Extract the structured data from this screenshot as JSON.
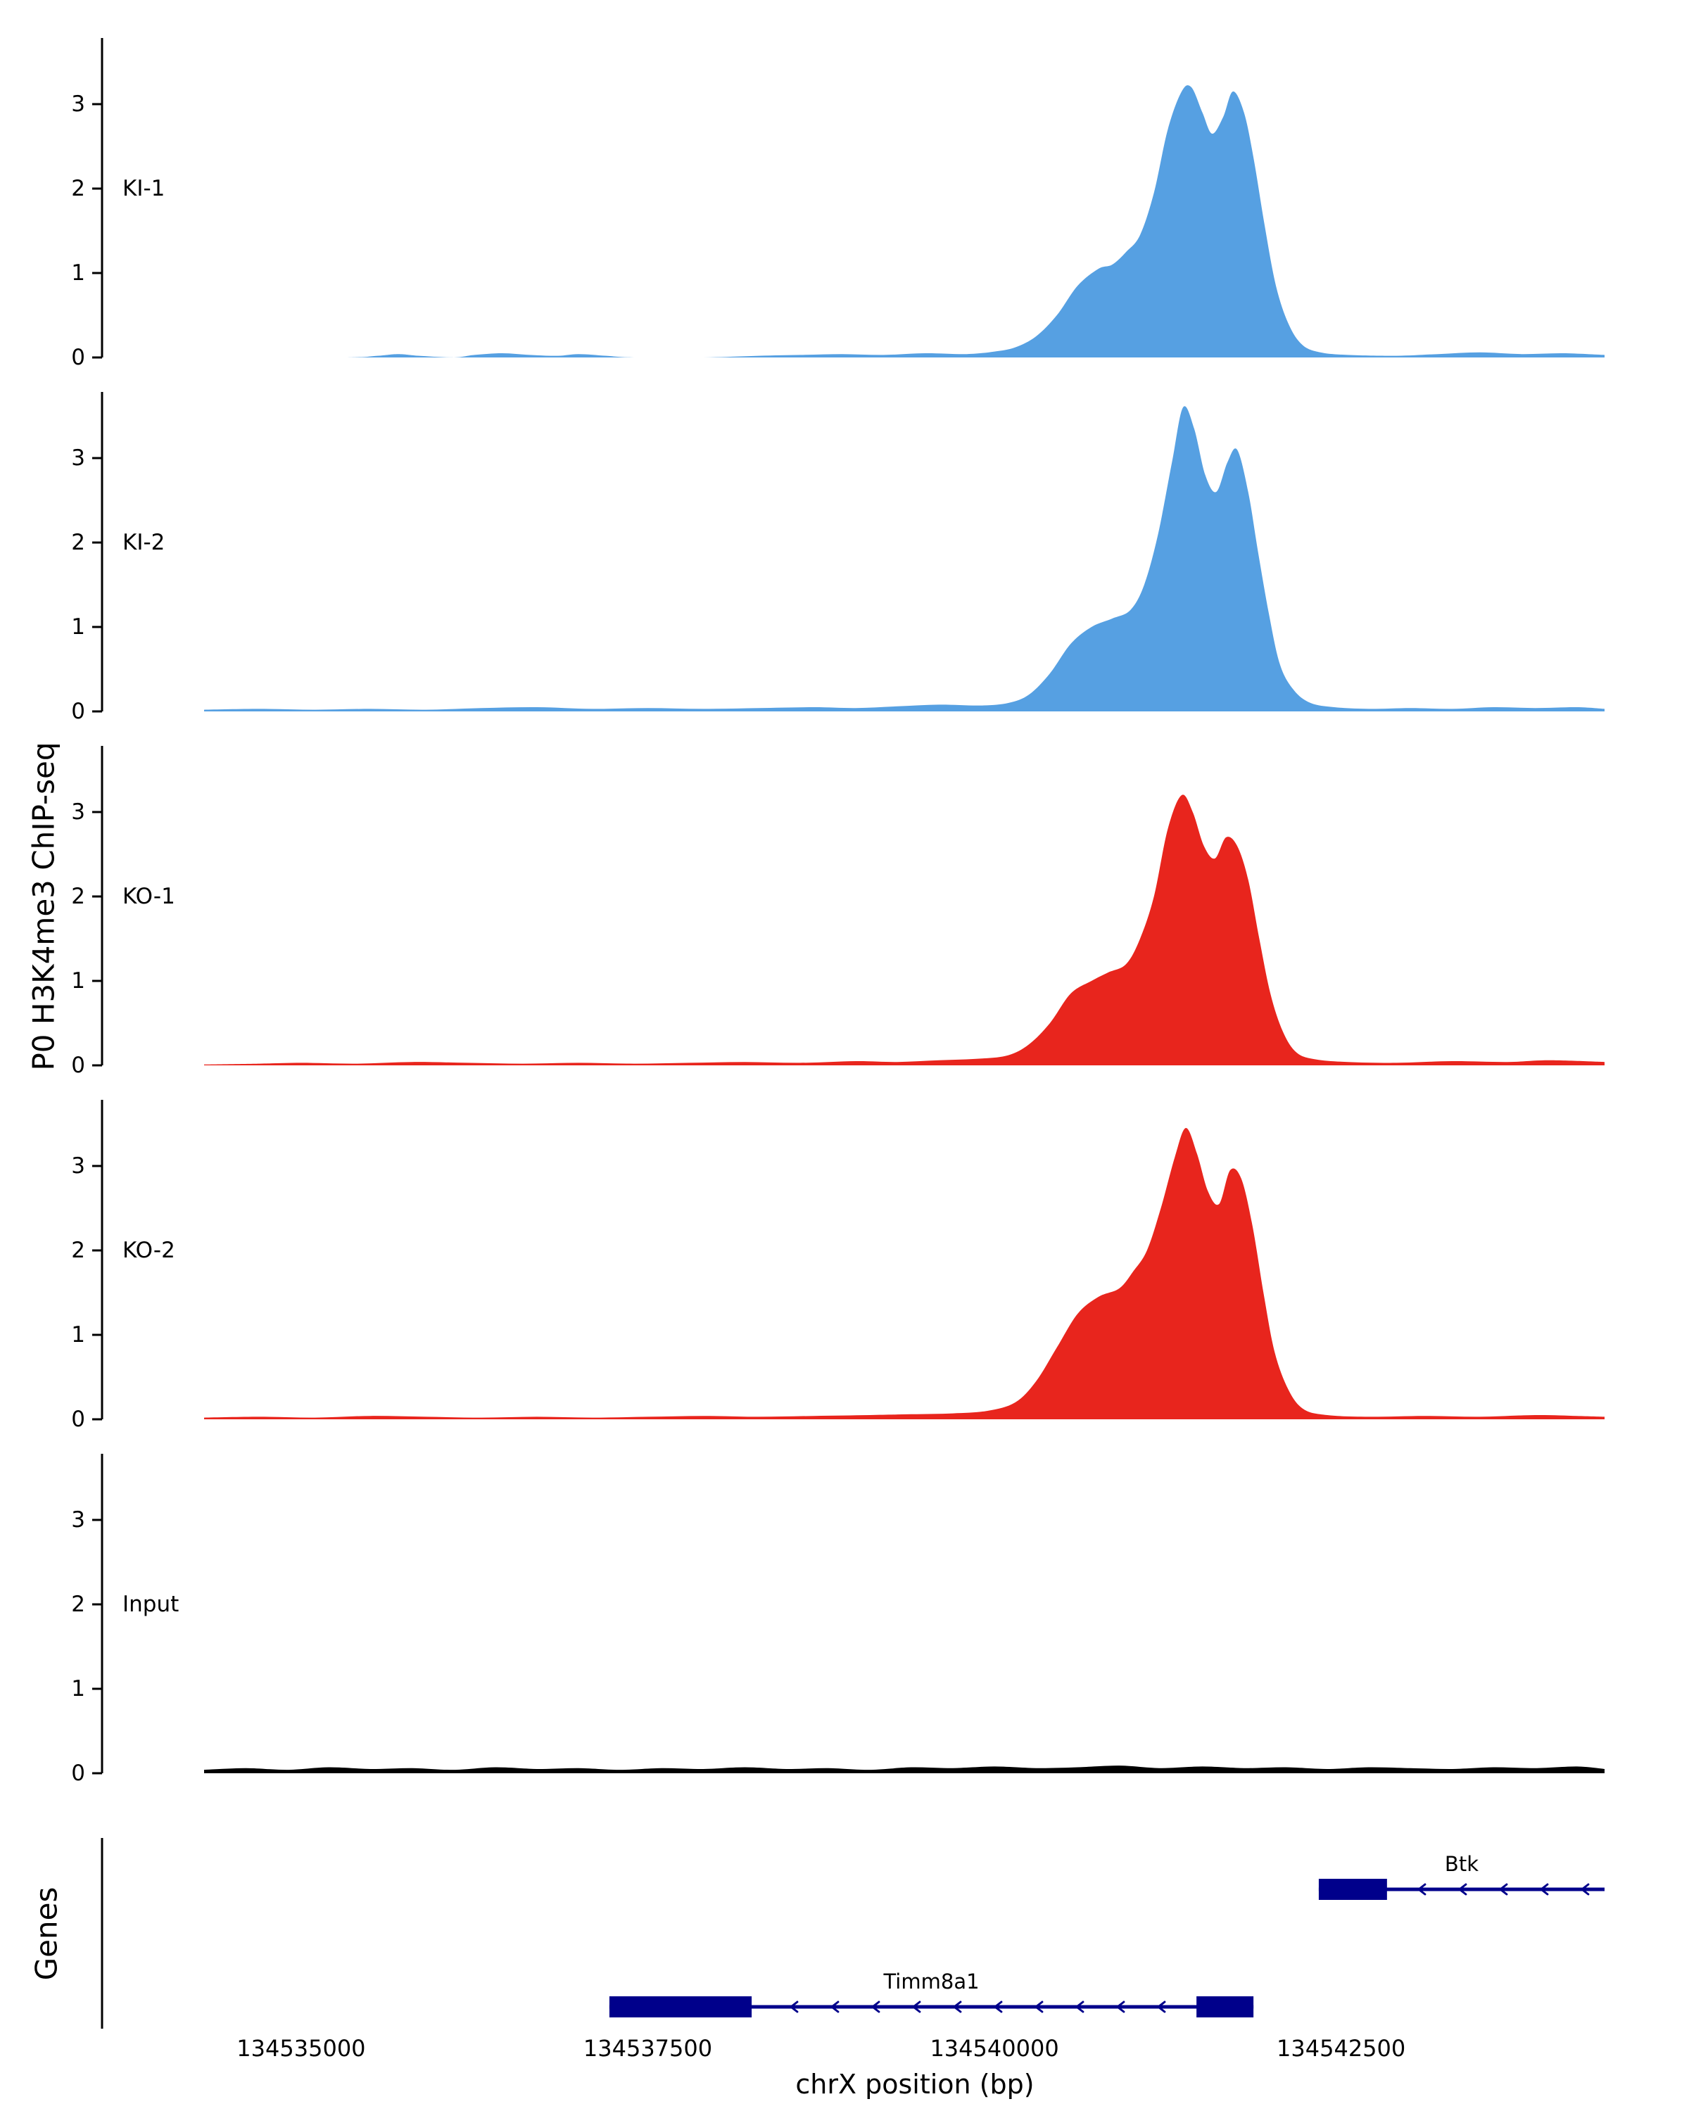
{
  "figure": {
    "xlabel": "chrX position (bp)",
    "ylabel_tracks": "P0 H3K4me3 ChIP-seq",
    "ylabel_genes": "Genes",
    "background": "#ffffff",
    "colors": {
      "ki": "#56a0e2",
      "ko": "#e8251d",
      "input": "#000000",
      "gene": "#00008b",
      "axis": "#000000"
    }
  },
  "chart_data": {
    "type": "area",
    "layout": "stacked-genome-tracks",
    "x_axis": {
      "label": "chrX position (bp)",
      "domain": [
        134534300,
        134544400
      ],
      "ticks": [
        134535000,
        134537500,
        134540000,
        134542500
      ],
      "tick_labels": [
        "134535000",
        "134537500",
        "134540000",
        "134542500"
      ]
    },
    "y_axis": {
      "label": "P0 H3K4me3 ChIP-seq",
      "ticks": [
        0,
        1,
        2,
        3
      ],
      "ylim": [
        0,
        3.78
      ]
    },
    "tracks": [
      {
        "name": "KI-1",
        "color": "#56a0e2",
        "profile": [
          [
            134534300,
            0
          ],
          [
            134535300,
            0
          ],
          [
            134535550,
            0.02
          ],
          [
            134535700,
            0.04
          ],
          [
            134535850,
            0.02
          ],
          [
            134536100,
            0
          ],
          [
            134536250,
            0.03
          ],
          [
            134536450,
            0.05
          ],
          [
            134536650,
            0.03
          ],
          [
            134536850,
            0.02
          ],
          [
            134537000,
            0.04
          ],
          [
            134537200,
            0.02
          ],
          [
            134537400,
            0
          ],
          [
            134537900,
            0
          ],
          [
            134538300,
            0.02
          ],
          [
            134538600,
            0.03
          ],
          [
            134538900,
            0.04
          ],
          [
            134539200,
            0.03
          ],
          [
            134539500,
            0.05
          ],
          [
            134539800,
            0.04
          ],
          [
            134540000,
            0.07
          ],
          [
            134540150,
            0.12
          ],
          [
            134540300,
            0.25
          ],
          [
            134540450,
            0.5
          ],
          [
            134540600,
            0.85
          ],
          [
            134540750,
            1.05
          ],
          [
            134540850,
            1.1
          ],
          [
            134540950,
            1.25
          ],
          [
            134541050,
            1.45
          ],
          [
            134541150,
            1.95
          ],
          [
            134541250,
            2.7
          ],
          [
            134541350,
            3.15
          ],
          [
            134541420,
            3.2
          ],
          [
            134541500,
            2.9
          ],
          [
            134541570,
            2.65
          ],
          [
            134541650,
            2.85
          ],
          [
            134541720,
            3.15
          ],
          [
            134541800,
            2.9
          ],
          [
            134541870,
            2.35
          ],
          [
            134541950,
            1.55
          ],
          [
            134542030,
            0.85
          ],
          [
            134542120,
            0.4
          ],
          [
            134542220,
            0.15
          ],
          [
            134542350,
            0.06
          ],
          [
            134542550,
            0.03
          ],
          [
            134542900,
            0.02
          ],
          [
            134543200,
            0.04
          ],
          [
            134543500,
            0.06
          ],
          [
            134543800,
            0.04
          ],
          [
            134544100,
            0.05
          ],
          [
            134544400,
            0.03
          ]
        ]
      },
      {
        "name": "KI-2",
        "color": "#56a0e2",
        "profile": [
          [
            134534300,
            0.02
          ],
          [
            134534700,
            0.03
          ],
          [
            134535100,
            0.02
          ],
          [
            134535500,
            0.03
          ],
          [
            134535900,
            0.02
          ],
          [
            134536300,
            0.04
          ],
          [
            134536700,
            0.05
          ],
          [
            134537100,
            0.03
          ],
          [
            134537500,
            0.04
          ],
          [
            134537900,
            0.03
          ],
          [
            134538300,
            0.04
          ],
          [
            134538700,
            0.05
          ],
          [
            134539000,
            0.04
          ],
          [
            134539300,
            0.06
          ],
          [
            134539600,
            0.08
          ],
          [
            134539900,
            0.07
          ],
          [
            134540100,
            0.1
          ],
          [
            134540250,
            0.2
          ],
          [
            134540400,
            0.45
          ],
          [
            134540550,
            0.8
          ],
          [
            134540700,
            1.0
          ],
          [
            134540850,
            1.1
          ],
          [
            134540980,
            1.2
          ],
          [
            134541080,
            1.5
          ],
          [
            134541180,
            2.1
          ],
          [
            134541280,
            2.95
          ],
          [
            134541360,
            3.6
          ],
          [
            134541440,
            3.35
          ],
          [
            134541520,
            2.8
          ],
          [
            134541600,
            2.6
          ],
          [
            134541680,
            2.95
          ],
          [
            134541750,
            3.1
          ],
          [
            134541830,
            2.6
          ],
          [
            134541900,
            1.9
          ],
          [
            134541980,
            1.15
          ],
          [
            134542060,
            0.55
          ],
          [
            134542160,
            0.25
          ],
          [
            134542280,
            0.1
          ],
          [
            134542450,
            0.05
          ],
          [
            134542700,
            0.03
          ],
          [
            134543000,
            0.04
          ],
          [
            134543300,
            0.03
          ],
          [
            134543600,
            0.05
          ],
          [
            134543900,
            0.04
          ],
          [
            134544200,
            0.05
          ],
          [
            134544400,
            0.03
          ]
        ]
      },
      {
        "name": "KO-1",
        "color": "#e8251d",
        "profile": [
          [
            134534300,
            0.01
          ],
          [
            134534700,
            0.02
          ],
          [
            134535000,
            0.03
          ],
          [
            134535400,
            0.02
          ],
          [
            134535800,
            0.04
          ],
          [
            134536200,
            0.03
          ],
          [
            134536600,
            0.02
          ],
          [
            134537000,
            0.03
          ],
          [
            134537400,
            0.02
          ],
          [
            134537800,
            0.03
          ],
          [
            134538200,
            0.04
          ],
          [
            134538600,
            0.03
          ],
          [
            134539000,
            0.05
          ],
          [
            134539300,
            0.04
          ],
          [
            134539600,
            0.06
          ],
          [
            134539900,
            0.08
          ],
          [
            134540100,
            0.12
          ],
          [
            134540250,
            0.25
          ],
          [
            134540400,
            0.5
          ],
          [
            134540550,
            0.85
          ],
          [
            134540700,
            1.0
          ],
          [
            134540820,
            1.1
          ],
          [
            134540950,
            1.2
          ],
          [
            134541050,
            1.5
          ],
          [
            134541150,
            2.0
          ],
          [
            134541250,
            2.8
          ],
          [
            134541350,
            3.2
          ],
          [
            134541430,
            3.0
          ],
          [
            134541510,
            2.6
          ],
          [
            134541590,
            2.45
          ],
          [
            134541670,
            2.7
          ],
          [
            134541750,
            2.6
          ],
          [
            134541830,
            2.2
          ],
          [
            134541910,
            1.5
          ],
          [
            134541990,
            0.85
          ],
          [
            134542080,
            0.4
          ],
          [
            134542180,
            0.15
          ],
          [
            134542320,
            0.07
          ],
          [
            134542550,
            0.04
          ],
          [
            134542900,
            0.03
          ],
          [
            134543300,
            0.05
          ],
          [
            134543700,
            0.04
          ],
          [
            134544000,
            0.06
          ],
          [
            134544400,
            0.04
          ]
        ]
      },
      {
        "name": "KO-2",
        "color": "#e8251d",
        "profile": [
          [
            134534300,
            0.02
          ],
          [
            134534700,
            0.03
          ],
          [
            134535100,
            0.02
          ],
          [
            134535500,
            0.04
          ],
          [
            134535900,
            0.03
          ],
          [
            134536300,
            0.02
          ],
          [
            134536700,
            0.03
          ],
          [
            134537100,
            0.02
          ],
          [
            134537500,
            0.03
          ],
          [
            134537900,
            0.04
          ],
          [
            134538300,
            0.03
          ],
          [
            134538700,
            0.04
          ],
          [
            134539100,
            0.05
          ],
          [
            134539400,
            0.06
          ],
          [
            134539700,
            0.07
          ],
          [
            134539950,
            0.1
          ],
          [
            134540150,
            0.2
          ],
          [
            134540300,
            0.45
          ],
          [
            134540450,
            0.85
          ],
          [
            134540600,
            1.25
          ],
          [
            134540750,
            1.45
          ],
          [
            134540900,
            1.55
          ],
          [
            134541000,
            1.75
          ],
          [
            134541100,
            2.0
          ],
          [
            134541200,
            2.5
          ],
          [
            134541300,
            3.1
          ],
          [
            134541380,
            3.45
          ],
          [
            134541460,
            3.15
          ],
          [
            134541540,
            2.7
          ],
          [
            134541620,
            2.55
          ],
          [
            134541700,
            2.95
          ],
          [
            134541780,
            2.85
          ],
          [
            134541860,
            2.3
          ],
          [
            134541940,
            1.5
          ],
          [
            134542020,
            0.8
          ],
          [
            134542120,
            0.35
          ],
          [
            134542230,
            0.12
          ],
          [
            134542400,
            0.05
          ],
          [
            134542700,
            0.03
          ],
          [
            134543100,
            0.04
          ],
          [
            134543500,
            0.03
          ],
          [
            134543900,
            0.05
          ],
          [
            134544200,
            0.04
          ],
          [
            134544400,
            0.03
          ]
        ]
      },
      {
        "name": "Input",
        "color": "#000000",
        "profile": [
          [
            134534300,
            0.03
          ],
          [
            134534600,
            0.05
          ],
          [
            134534900,
            0.03
          ],
          [
            134535200,
            0.06
          ],
          [
            134535500,
            0.04
          ],
          [
            134535800,
            0.05
          ],
          [
            134536100,
            0.03
          ],
          [
            134536400,
            0.06
          ],
          [
            134536700,
            0.04
          ],
          [
            134537000,
            0.05
          ],
          [
            134537300,
            0.03
          ],
          [
            134537600,
            0.05
          ],
          [
            134537900,
            0.04
          ],
          [
            134538200,
            0.06
          ],
          [
            134538500,
            0.04
          ],
          [
            134538800,
            0.05
          ],
          [
            134539100,
            0.03
          ],
          [
            134539400,
            0.06
          ],
          [
            134539700,
            0.05
          ],
          [
            134540000,
            0.07
          ],
          [
            134540300,
            0.05
          ],
          [
            134540600,
            0.06
          ],
          [
            134540900,
            0.08
          ],
          [
            134541200,
            0.05
          ],
          [
            134541500,
            0.07
          ],
          [
            134541800,
            0.05
          ],
          [
            134542100,
            0.06
          ],
          [
            134542400,
            0.04
          ],
          [
            134542700,
            0.06
          ],
          [
            134543000,
            0.05
          ],
          [
            134543300,
            0.04
          ],
          [
            134543600,
            0.06
          ],
          [
            134543900,
            0.05
          ],
          [
            134544200,
            0.07
          ],
          [
            134544400,
            0.04
          ]
        ]
      }
    ],
    "genes": [
      {
        "name": "Btk",
        "strand": "-",
        "row": 0,
        "start": 134542339,
        "end": 134544400,
        "exons": [
          [
            134542339,
            134542831
          ]
        ]
      },
      {
        "name": "Timm8a1",
        "strand": "-",
        "row": 1,
        "start": 134537223,
        "end": 134541868,
        "exons": [
          [
            134537223,
            134538249
          ],
          [
            134541457,
            134541868
          ]
        ]
      }
    ]
  }
}
